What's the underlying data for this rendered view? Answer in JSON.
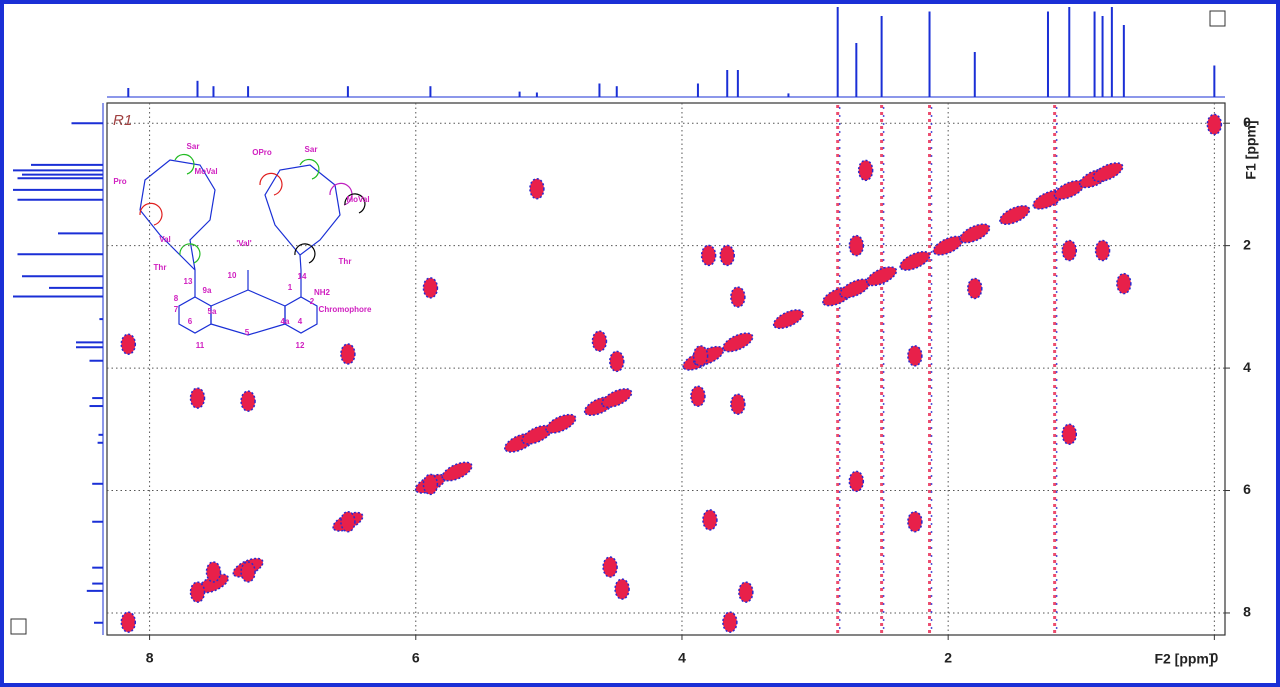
{
  "chart_data": {
    "type": "scatter",
    "x_label": "F2 [ppm]",
    "y_label": "F1 [ppm]",
    "panel_label": "R1",
    "xlim": [
      8.32,
      -0.08
    ],
    "ylim": [
      -0.33,
      8.36
    ],
    "xticks": [
      8,
      6,
      4,
      2,
      0
    ],
    "yticks": [
      0,
      2,
      4,
      6,
      8
    ],
    "grid": true,
    "color": "#e8204a",
    "edge_color": "#2a2ad0",
    "x": [
      8.16,
      8.16,
      7.64,
      7.64,
      7.52,
      7.26,
      7.26,
      6.51,
      6.51,
      5.89,
      5.89,
      5.09,
      4.62,
      4.49,
      4.54,
      4.45,
      3.8,
      3.66,
      3.58,
      3.79,
      3.88,
      3.58,
      3.52,
      3.64,
      3.86,
      2.62,
      2.69,
      2.69,
      1.8,
      2.25,
      2.25,
      1.09,
      0.84,
      0.68,
      1.09,
      0.0
    ],
    "values": [
      3.61,
      8.15,
      4.49,
      7.66,
      7.33,
      4.54,
      7.33,
      3.77,
      6.51,
      2.69,
      5.9,
      1.07,
      3.56,
      3.89,
      7.25,
      7.61,
      2.16,
      2.16,
      2.84,
      6.48,
      4.46,
      4.59,
      7.66,
      8.15,
      3.8,
      0.77,
      2.0,
      5.85,
      2.7,
      3.8,
      6.51,
      2.08,
      2.08,
      2.62,
      5.08,
      0.02
    ],
    "diagonal": [
      7.52,
      7.26,
      6.51,
      5.89,
      5.69,
      5.22,
      5.09,
      4.91,
      4.62,
      4.49,
      3.88,
      3.8,
      3.58,
      3.2,
      2.83,
      2.7,
      2.5,
      2.25,
      2.0,
      1.8,
      1.5,
      1.25,
      1.09,
      0.9,
      0.8
    ],
    "t1_noise": [
      2.83,
      2.5,
      2.14,
      1.2
    ],
    "projection": {
      "ppm": [
        8.16,
        7.64,
        7.52,
        7.26,
        6.51,
        5.89,
        5.22,
        5.09,
        4.62,
        4.49,
        3.88,
        3.66,
        3.58,
        3.2,
        2.83,
        2.69,
        2.5,
        2.14,
        1.8,
        1.25,
        1.09,
        0.9,
        0.84,
        0.77,
        0.68,
        0.0
      ],
      "height": [
        0.1,
        0.18,
        0.12,
        0.12,
        0.12,
        0.12,
        0.06,
        0.05,
        0.15,
        0.12,
        0.15,
        0.3,
        0.3,
        0.04,
        1.0,
        0.6,
        0.9,
        0.95,
        0.5,
        0.95,
        1.0,
        0.95,
        0.9,
        1.0,
        0.8,
        0.35
      ]
    },
    "structure_labels": [
      "Sar",
      "MoVal",
      "Pro",
      "Val",
      "Thr",
      "OPro",
      "Sar",
      "MoVal",
      "'Val'",
      "Thr",
      "Chromophore",
      "NH2",
      "1",
      "2",
      "9a",
      "5a",
      "4a",
      "5",
      "4",
      "12",
      "14",
      "13",
      "8",
      "7",
      "6",
      "11",
      "10"
    ]
  }
}
